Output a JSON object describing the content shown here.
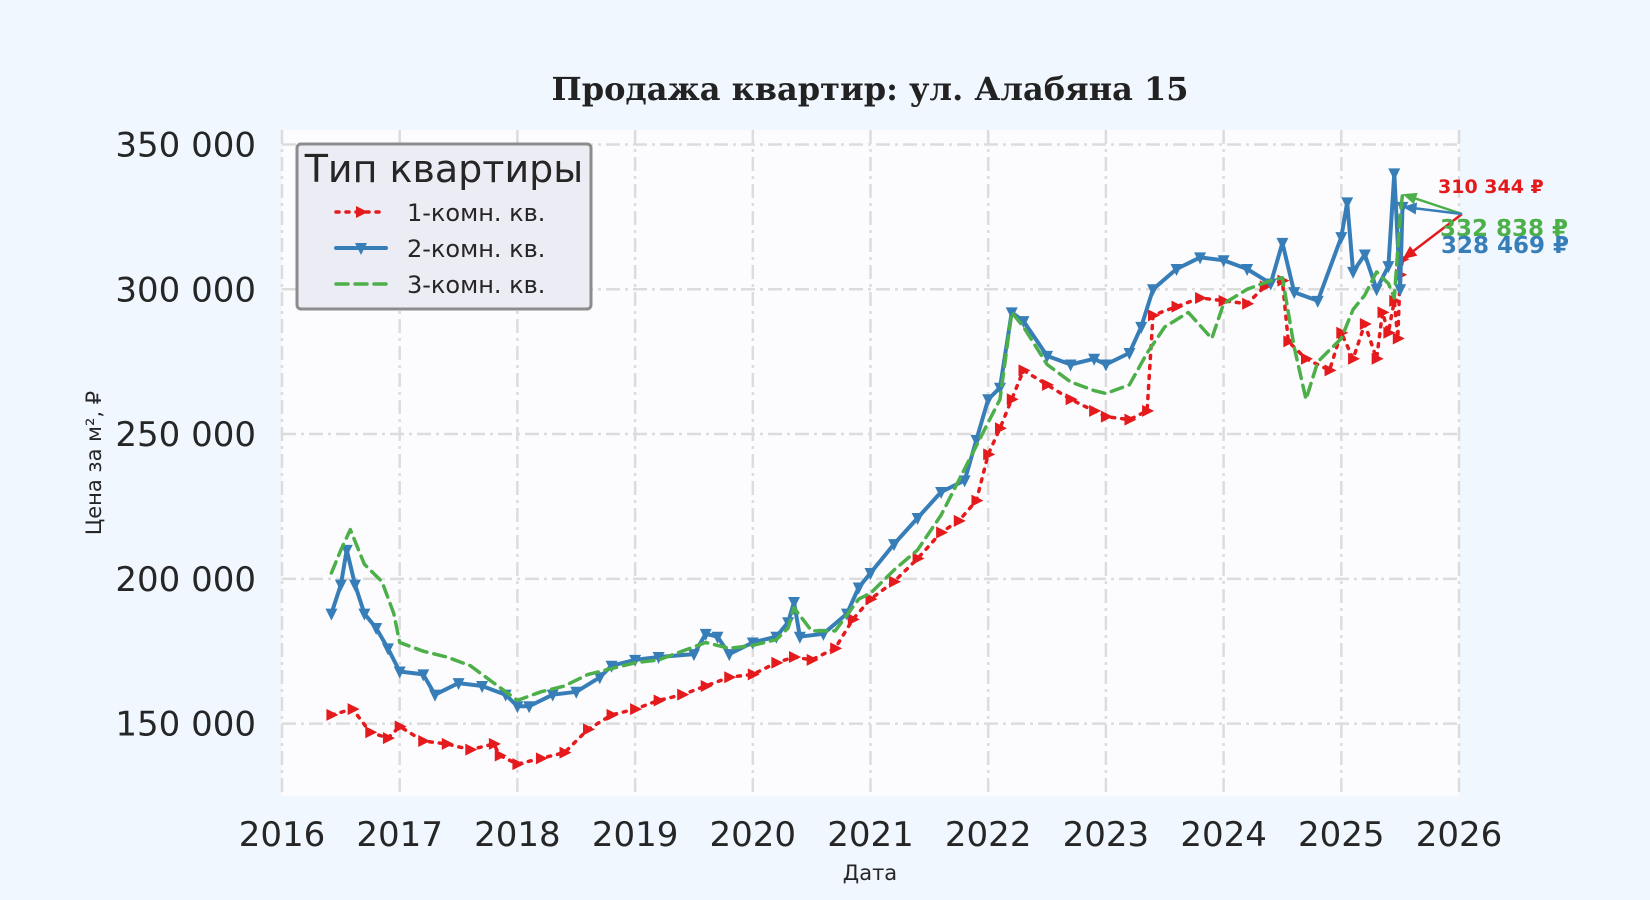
{
  "chart_data": {
    "type": "line",
    "title": "Продажа квартир: ул. Алабяна 15",
    "xlabel": "Дата",
    "ylabel": "Цена за м², ₽",
    "xlim": [
      2016.0,
      2026.0
    ],
    "ylim": [
      125000,
      355000
    ],
    "x_ticks": [
      2016,
      2017,
      2018,
      2019,
      2020,
      2021,
      2022,
      2023,
      2024,
      2025,
      2026
    ],
    "x_tick_labels": [
      "2016",
      "2017",
      "2018",
      "2019",
      "2020",
      "2021",
      "2022",
      "2023",
      "2024",
      "2025",
      "2026"
    ],
    "y_ticks": [
      150000,
      200000,
      250000,
      300000,
      350000
    ],
    "y_tick_labels": [
      "150 000",
      "200 000",
      "250 000",
      "300 000",
      "350 000"
    ],
    "grid": true,
    "legend": {
      "title": "Тип квартиры",
      "position": "top-left"
    },
    "series": [
      {
        "name": "1-комн. кв.",
        "color": "#e41a1c",
        "style": "dotted",
        "marker": "triangle-right",
        "x": [
          2016.42,
          2016.6,
          2016.75,
          2016.9,
          2017.0,
          2017.2,
          2017.4,
          2017.6,
          2017.8,
          2017.85,
          2018.0,
          2018.2,
          2018.4,
          2018.6,
          2018.8,
          2019.0,
          2019.2,
          2019.4,
          2019.6,
          2019.8,
          2020.0,
          2020.2,
          2020.35,
          2020.5,
          2020.7,
          2020.85,
          2021.0,
          2021.2,
          2021.4,
          2021.6,
          2021.75,
          2021.9,
          2022.0,
          2022.1,
          2022.2,
          2022.3,
          2022.5,
          2022.7,
          2022.9,
          2023.0,
          2023.2,
          2023.35,
          2023.4,
          2023.6,
          2023.8,
          2024.0,
          2024.2,
          2024.35,
          2024.5,
          2024.55,
          2024.7,
          2024.9,
          2025.0,
          2025.1,
          2025.2,
          2025.3,
          2025.35,
          2025.4,
          2025.45,
          2025.48,
          2025.5,
          2025.52
        ],
        "values": [
          153000,
          155000,
          147000,
          145000,
          149000,
          144000,
          143000,
          141000,
          143000,
          139000,
          136000,
          138000,
          140000,
          148000,
          153000,
          155000,
          158000,
          160000,
          163000,
          166000,
          167000,
          171000,
          173000,
          172000,
          176000,
          186000,
          193000,
          199000,
          207000,
          216000,
          220000,
          227000,
          243000,
          252000,
          262000,
          272000,
          267000,
          262000,
          258000,
          256000,
          255000,
          258000,
          291000,
          294000,
          297000,
          296000,
          295000,
          301000,
          303000,
          282000,
          276000,
          272000,
          285000,
          276000,
          288000,
          276000,
          292000,
          285000,
          296000,
          283000,
          305000,
          310344
        ]
      },
      {
        "name": "2-комн. кв.",
        "color": "#377eb8",
        "style": "solid",
        "marker": "triangle-down",
        "x": [
          2016.42,
          2016.5,
          2016.55,
          2016.62,
          2016.7,
          2016.8,
          2016.9,
          2017.0,
          2017.2,
          2017.3,
          2017.5,
          2017.7,
          2017.9,
          2018.0,
          2018.1,
          2018.3,
          2018.5,
          2018.7,
          2018.8,
          2019.0,
          2019.2,
          2019.5,
          2019.6,
          2019.7,
          2019.8,
          2020.0,
          2020.2,
          2020.3,
          2020.35,
          2020.4,
          2020.6,
          2020.8,
          2020.9,
          2021.0,
          2021.2,
          2021.4,
          2021.6,
          2021.8,
          2021.9,
          2022.0,
          2022.1,
          2022.2,
          2022.3,
          2022.5,
          2022.7,
          2022.9,
          2023.0,
          2023.2,
          2023.3,
          2023.4,
          2023.6,
          2023.8,
          2024.0,
          2024.2,
          2024.4,
          2024.5,
          2024.6,
          2024.8,
          2025.0,
          2025.05,
          2025.1,
          2025.2,
          2025.3,
          2025.4,
          2025.45,
          2025.5,
          2025.52
        ],
        "values": [
          188000,
          198000,
          210000,
          198000,
          188000,
          183000,
          176000,
          168000,
          167000,
          160000,
          164000,
          163000,
          160000,
          156000,
          156000,
          160000,
          161000,
          166000,
          170000,
          172000,
          173000,
          174000,
          181000,
          180000,
          174000,
          178000,
          180000,
          185000,
          192000,
          180000,
          181000,
          188000,
          197000,
          202000,
          212000,
          221000,
          230000,
          234000,
          248000,
          262000,
          266000,
          292000,
          289000,
          277000,
          274000,
          276000,
          274000,
          278000,
          287000,
          300000,
          307000,
          311000,
          310000,
          307000,
          302000,
          316000,
          299000,
          296000,
          318000,
          330000,
          306000,
          312000,
          300000,
          308000,
          340000,
          300000,
          328469
        ]
      },
      {
        "name": "3-комн. кв.",
        "color": "#4daf4a",
        "style": "dashed",
        "marker": "none",
        "x": [
          2016.42,
          2016.5,
          2016.58,
          2016.7,
          2016.85,
          2016.95,
          2017.0,
          2017.2,
          2017.4,
          2017.6,
          2017.8,
          2018.0,
          2018.2,
          2018.4,
          2018.6,
          2018.8,
          2019.0,
          2019.2,
          2019.4,
          2019.6,
          2019.8,
          2020.0,
          2020.2,
          2020.3,
          2020.35,
          2020.5,
          2020.7,
          2020.9,
          2021.0,
          2021.2,
          2021.4,
          2021.6,
          2021.8,
          2021.95,
          2022.1,
          2022.2,
          2022.3,
          2022.5,
          2022.7,
          2022.9,
          2023.0,
          2023.2,
          2023.35,
          2023.5,
          2023.7,
          2023.9,
          2024.0,
          2024.2,
          2024.4,
          2024.5,
          2024.6,
          2024.7,
          2024.8,
          2025.0,
          2025.1,
          2025.2,
          2025.3,
          2025.4,
          2025.45,
          2025.5,
          2025.52
        ],
        "values": [
          202000,
          210000,
          217000,
          205000,
          199000,
          188000,
          178000,
          175000,
          173000,
          170000,
          164000,
          158000,
          161000,
          163000,
          167000,
          169000,
          171000,
          172000,
          175000,
          178000,
          176000,
          177000,
          179000,
          183000,
          190000,
          182000,
          182000,
          193000,
          195000,
          203000,
          210000,
          222000,
          238000,
          250000,
          262000,
          292000,
          287000,
          274000,
          268000,
          265000,
          264000,
          267000,
          278000,
          287000,
          292000,
          283000,
          295000,
          300000,
          303000,
          304000,
          280000,
          262000,
          275000,
          283000,
          293000,
          298000,
          306000,
          302000,
          297000,
          325000,
          332838
        ]
      }
    ],
    "annotations": [
      {
        "text": "310 344 ₽",
        "series": "1-комн. кв.",
        "x": 2025.52,
        "y": 310344,
        "color": "#e41a1c"
      },
      {
        "text": "332 838 ₽",
        "series": "3-комн. кв.",
        "x": 2025.52,
        "y": 332838,
        "color": "#4daf4a"
      },
      {
        "text": "328 469 ₽",
        "series": "2-комн. кв.",
        "x": 2025.52,
        "y": 328469,
        "color": "#377eb8"
      }
    ]
  }
}
